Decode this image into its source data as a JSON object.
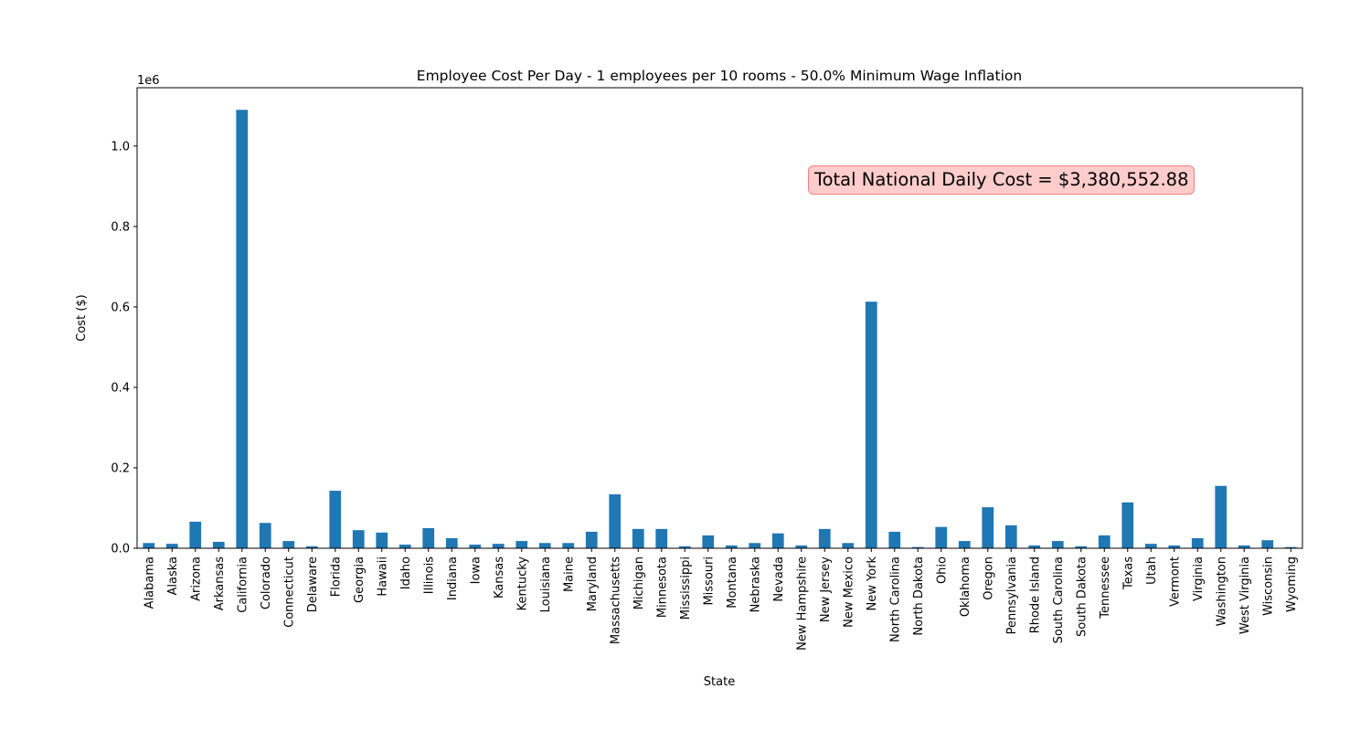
{
  "chart_data": {
    "type": "bar",
    "title": "Employee Cost Per Day - 1 employees per 10 rooms - 50.0% Minimum Wage Inflation",
    "xlabel": "State",
    "ylabel": "Cost ($)",
    "y_offset_text": "1e6",
    "ylim": [
      0,
      1145000
    ],
    "y_ticks": [
      0,
      200000,
      400000,
      600000,
      800000,
      1000000
    ],
    "y_tick_labels": [
      "0.0",
      "0.2",
      "0.4",
      "0.6",
      "0.8",
      "1.0"
    ],
    "bar_color": "#1f77b4",
    "grid": false,
    "annotation": "Total National Daily Cost = $3,380,552.88",
    "categories": [
      "Alabama",
      "Alaska",
      "Arizona",
      "Arkansas",
      "California",
      "Colorado",
      "Connecticut",
      "Delaware",
      "Florida",
      "Georgia",
      "Hawaii",
      "Idaho",
      "Illinois",
      "Indiana",
      "Iowa",
      "Kansas",
      "Kentucky",
      "Louisiana",
      "Maine",
      "Maryland",
      "Massachusetts",
      "Michigan",
      "Minnesota",
      "Mississippi",
      "Missouri",
      "Montana",
      "Nebraska",
      "Nevada",
      "New Hampshire",
      "New Jersey",
      "New Mexico",
      "New York",
      "North Carolina",
      "North Dakota",
      "Ohio",
      "Oklahoma",
      "Oregon",
      "Pennsylvania",
      "Rhode Island",
      "South Carolina",
      "South Dakota",
      "Tennessee",
      "Texas",
      "Utah",
      "Vermont",
      "Virginia",
      "Washington",
      "West Virginia",
      "Wisconsin",
      "Wyoming"
    ],
    "values": [
      13000,
      11000,
      66000,
      16000,
      1090000,
      63000,
      18000,
      5000,
      143000,
      45000,
      39000,
      9000,
      50000,
      25000,
      9000,
      11000,
      18000,
      13000,
      13000,
      41000,
      134000,
      48000,
      48000,
      5000,
      32000,
      7000,
      13000,
      37000,
      7000,
      48000,
      13000,
      613000,
      41000,
      3000,
      53000,
      18000,
      102000,
      57000,
      7000,
      18000,
      5000,
      32000,
      114000,
      11000,
      7000,
      25000,
      155000,
      7000,
      20000,
      3000
    ]
  }
}
